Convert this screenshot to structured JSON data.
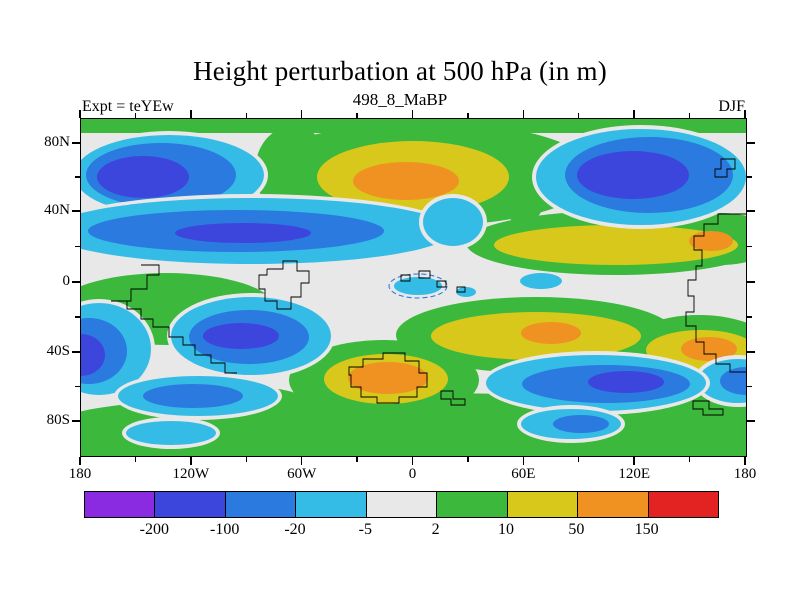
{
  "title": "Height perturbation at 500 hPa (in m)",
  "subtitle": "498_8_MaBP",
  "expt_label": "Expt = teYEw",
  "season_label": "DJF",
  "axes": {
    "lat_ticks": [
      "80N",
      "40N",
      "0",
      "40S",
      "80S"
    ],
    "lon_ticks": [
      "180",
      "120W",
      "60W",
      "0",
      "60E",
      "120E",
      "180"
    ]
  },
  "colorbar": {
    "levels": [
      "-200",
      "-100",
      "-20",
      "-5",
      "2",
      "10",
      "50",
      "150"
    ],
    "colors": [
      "#8a2be2",
      "#3c46dd",
      "#2b7ae0",
      "#35bce6",
      "#e8e8e8",
      "#3cb83c",
      "#d8c81c",
      "#ef9221",
      "#e32222"
    ]
  },
  "map": {
    "background": "#e8e8e8",
    "coastline_color": "#000000"
  },
  "chart_data": {
    "type": "heatmap",
    "title": "Height perturbation at 500 hPa (in m)",
    "subtitle": "498_8_MaBP",
    "experiment": "teYEw",
    "season": "DJF",
    "variable": "Height perturbation at 500 hPa",
    "units": "m",
    "projection": "cylindrical lat-lon, 180W-180E, 90N-90S",
    "contour_levels": [
      -200,
      -100,
      -20,
      -5,
      2,
      10,
      50,
      150
    ],
    "band_colors": [
      "#8a2be2",
      "#3c46dd",
      "#2b7ae0",
      "#35bce6",
      "#e8e8e8",
      "#3cb83c",
      "#d8c81c",
      "#ef9221",
      "#e32222"
    ],
    "legend_position": "bottom",
    "lat": [
      80,
      60,
      40,
      20,
      0,
      -20,
      -40,
      -60,
      -80
    ],
    "lon": [
      -180,
      -150,
      -120,
      -90,
      -60,
      -30,
      0,
      30,
      60,
      90,
      120,
      150,
      180
    ],
    "values": [
      [
        5,
        -10,
        -10,
        5,
        5,
        10,
        10,
        10,
        5,
        -10,
        -20,
        -20,
        -10
      ],
      [
        -50,
        -150,
        -100,
        -20,
        5,
        25,
        80,
        80,
        25,
        5,
        -50,
        -150,
        -100
      ],
      [
        -20,
        -20,
        -50,
        -50,
        -50,
        -50,
        -50,
        -20,
        5,
        10,
        25,
        25,
        -10
      ],
      [
        0,
        0,
        -10,
        -10,
        -10,
        -10,
        -10,
        0,
        10,
        25,
        25,
        10,
        0
      ],
      [
        0,
        0,
        0,
        0,
        0,
        0,
        -10,
        0,
        -10,
        0,
        5,
        10,
        10
      ],
      [
        5,
        5,
        -10,
        -50,
        -50,
        -20,
        5,
        25,
        25,
        25,
        25,
        10,
        5
      ],
      [
        -100,
        -150,
        -50,
        -100,
        -150,
        -50,
        -10,
        10,
        25,
        25,
        -20,
        -50,
        80
      ],
      [
        -20,
        -50,
        -20,
        5,
        80,
        80,
        5,
        -10,
        -50,
        -100,
        -50,
        5,
        25
      ],
      [
        5,
        5,
        5,
        5,
        5,
        10,
        10,
        5,
        5,
        -10,
        5,
        10,
        10
      ]
    ]
  }
}
